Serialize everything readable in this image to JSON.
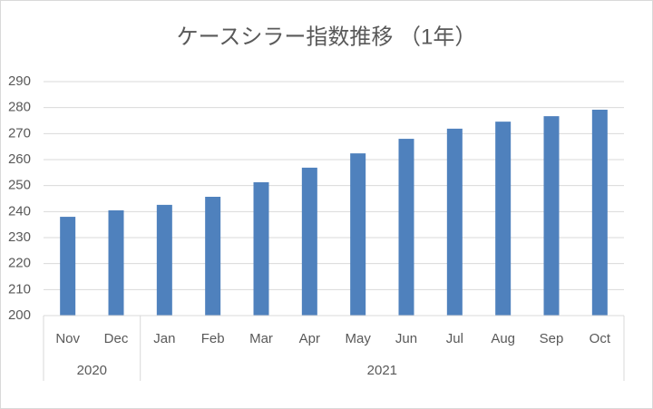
{
  "chart_data": {
    "type": "bar",
    "title": "ケースシラー指数推移 （1年）",
    "category_groups": [
      {
        "label": "2020",
        "categories": [
          "Nov",
          "Dec"
        ]
      },
      {
        "label": "2021",
        "categories": [
          "Jan",
          "Feb",
          "Mar",
          "Apr",
          "May",
          "Jun",
          "Jul",
          "Aug",
          "Sep",
          "Oct"
        ]
      }
    ],
    "values": [
      238.0,
      240.5,
      242.6,
      245.7,
      251.3,
      256.9,
      262.4,
      268.0,
      271.9,
      274.6,
      276.7,
      279.2
    ],
    "color": "#4f81bd",
    "ylim": [
      200,
      290
    ],
    "yticks": [
      200,
      210,
      220,
      230,
      240,
      250,
      260,
      270,
      280,
      290
    ],
    "grid": true
  }
}
